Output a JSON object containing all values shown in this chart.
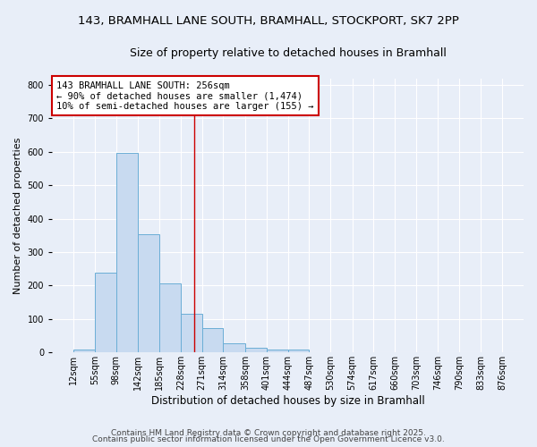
{
  "title_line1": "143, BRAMHALL LANE SOUTH, BRAMHALL, STOCKPORT, SK7 2PP",
  "title_line2": "Size of property relative to detached houses in Bramhall",
  "xlabel": "Distribution of detached houses by size in Bramhall",
  "ylabel": "Number of detached properties",
  "bin_edges": [
    12,
    55,
    98,
    142,
    185,
    228,
    271,
    314,
    358,
    401,
    444,
    487,
    530,
    574,
    617,
    660,
    703,
    746,
    790,
    833,
    876
  ],
  "bar_heights": [
    8,
    238,
    597,
    353,
    207,
    117,
    72,
    28,
    14,
    8,
    8,
    0,
    0,
    0,
    0,
    0,
    0,
    0,
    0,
    0
  ],
  "bar_color": "#c8daf0",
  "bar_edge_color": "#6baed6",
  "bg_color": "#e8eef8",
  "grid_color": "#ffffff",
  "vline_x": 256,
  "vline_color": "#cc0000",
  "ylim": [
    0,
    820
  ],
  "yticks": [
    0,
    100,
    200,
    300,
    400,
    500,
    600,
    700,
    800
  ],
  "annotation_title": "143 BRAMHALL LANE SOUTH: 256sqm",
  "annotation_line2": "← 90% of detached houses are smaller (1,474)",
  "annotation_line3": "10% of semi-detached houses are larger (155) →",
  "annotation_box_color": "#ffffff",
  "annotation_border_color": "#cc0000",
  "footer_line1": "Contains HM Land Registry data © Crown copyright and database right 2025.",
  "footer_line2": "Contains public sector information licensed under the Open Government Licence v3.0.",
  "title_fontsize": 9.5,
  "subtitle_fontsize": 9,
  "xlabel_fontsize": 8.5,
  "ylabel_fontsize": 8,
  "tick_fontsize": 7,
  "annotation_fontsize": 7.5,
  "footer_fontsize": 6.5
}
